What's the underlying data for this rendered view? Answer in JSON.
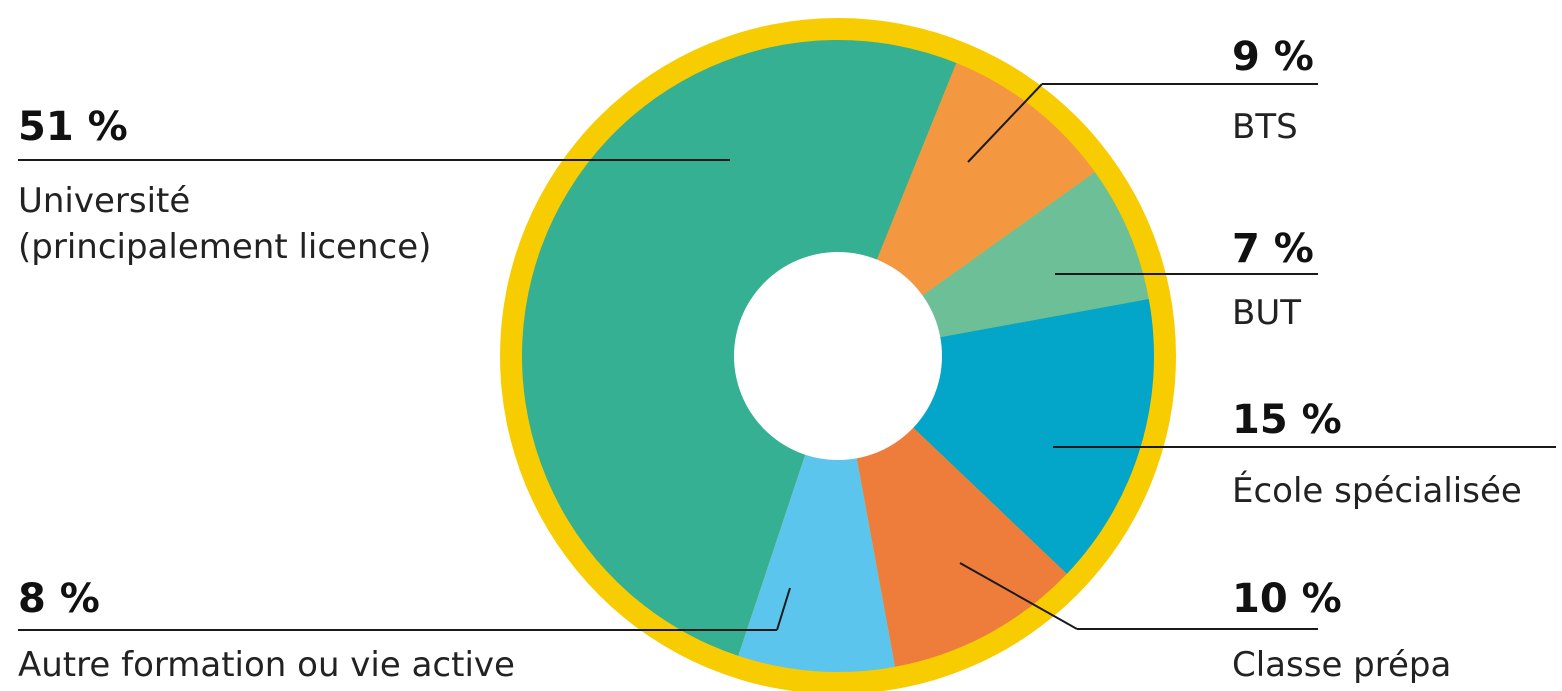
{
  "chart_data": {
    "type": "pie",
    "colors": {
      "ring": "#F7CC00",
      "hole": "#ffffff"
    },
    "slices": [
      {
        "label_lines": [
          "Université",
          "(principalement licence)"
        ],
        "percent_text": "51 %",
        "value": 51,
        "color": "#35B092"
      },
      {
        "label_lines": [
          "BTS"
        ],
        "percent_text": "9 %",
        "value": 9,
        "color": "#F39741"
      },
      {
        "label_lines": [
          "BUT"
        ],
        "percent_text": "7 %",
        "value": 7,
        "color": "#6DBF98"
      },
      {
        "label_lines": [
          "École spécialisée"
        ],
        "percent_text": "15 %",
        "value": 15,
        "color": "#03A5C9"
      },
      {
        "label_lines": [
          "Classe prépa"
        ],
        "percent_text": "10 %",
        "value": 10,
        "color": "#EE7D3B"
      },
      {
        "label_lines": [
          "Autre formation ou vie active"
        ],
        "percent_text": "8 %",
        "value": 8,
        "color": "#5BC5EE"
      }
    ]
  }
}
